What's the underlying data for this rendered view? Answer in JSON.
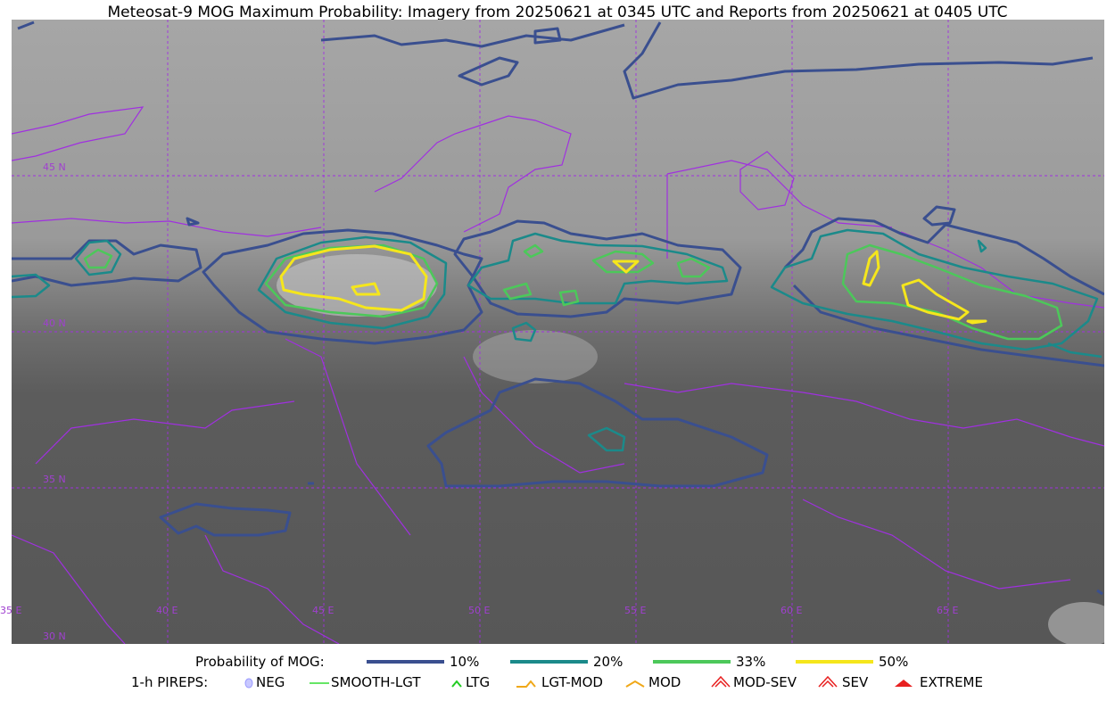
{
  "header": {
    "title": "Meteosat-9 MOG Maximum Probability: Imagery from 20250621 at 0345 UTC and Reports from 20250621 at 0405 UTC"
  },
  "map": {
    "lat_labels": [
      "45 N",
      "40 N",
      "35 N",
      "30 N"
    ],
    "lon_labels": [
      "35 E",
      "40 E",
      "45 E",
      "50 E",
      "55 E",
      "60 E",
      "65 E"
    ]
  },
  "legend": {
    "probability": {
      "label": "Probability of MOG:",
      "items": [
        "10%",
        "20%",
        "33%",
        "50%"
      ]
    },
    "pireps": {
      "label": "1-h PIREPS:",
      "items": [
        "NEG",
        "SMOOTH-LGT",
        "LTG",
        "LGT-MOD",
        "MOD",
        "MOD-SEV",
        "SEV",
        "EXTREME"
      ]
    }
  }
}
